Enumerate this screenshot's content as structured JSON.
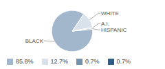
{
  "chart_data": {
    "type": "pie",
    "categories": [
      "BLACK",
      "WHITE",
      "A.I.",
      "HISPANIC"
    ],
    "values": [
      85.8,
      12.7,
      0.7,
      0.7
    ],
    "value_labels": [
      "85.8%",
      "12.7%",
      "0.7%",
      "0.7%"
    ],
    "colors": [
      "#a3b7cc",
      "#d9e1ea",
      "#7592ad",
      "#2e5d85"
    ]
  }
}
